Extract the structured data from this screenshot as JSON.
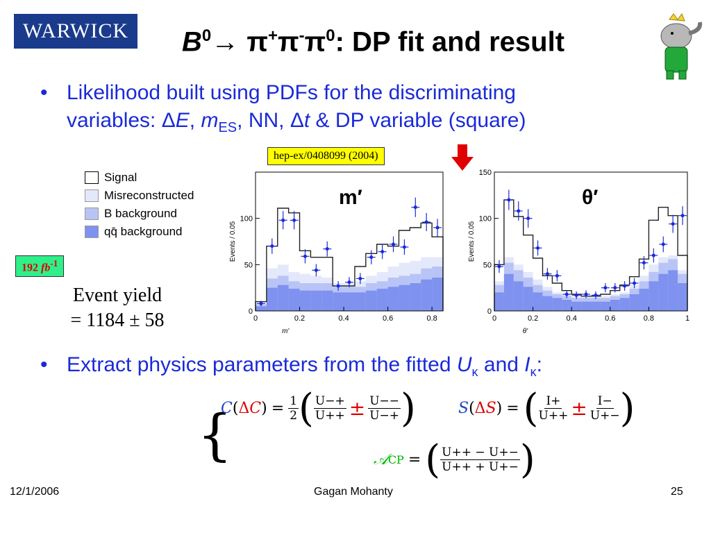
{
  "header": {
    "logo_text": "WARWICK",
    "title_B": "B",
    "title_B_sup": "0",
    "title_arrow": "→ π",
    "title_pi1_sup": "+",
    "title_pi2": "π",
    "title_pi2_sup": "-",
    "title_pi3": "π",
    "title_pi3_sup": "0",
    "title_rest": ": DP fit and result"
  },
  "bullets": {
    "b1_line1": "Likelihood built using PDFs for the discriminating",
    "b1_line2_a": "variables: Δ",
    "b1_line2_E": "E",
    "b1_line2_b": ", ",
    "b1_line2_m": "m",
    "b1_line2_sub": "ES",
    "b1_line2_c": ", NN, Δ",
    "b1_line2_t": "t",
    "b1_line2_d": " & DP variable (square)",
    "b2_a": "Extract physics parameters from the fitted ",
    "b2_U": "U",
    "b2_kappa1": "κ",
    "b2_and": " and ",
    "b2_I": "I",
    "b2_kappa2": "κ",
    "b2_colon": ":"
  },
  "reference": "hep-ex/0408099 (2004)",
  "luminosity": {
    "value": "192 ",
    "unit": "fb",
    "sup": "-1"
  },
  "event_yield": {
    "line1": "Event yield",
    "line2": "= 1184 ± 58"
  },
  "legend": {
    "items": [
      {
        "label": "Signal",
        "color": "#ffffff"
      },
      {
        "label": "Misreconstructed",
        "color": "#e4e8fb"
      },
      {
        "label": "B background",
        "color": "#b9c4f6"
      },
      {
        "label": "qq̄ background",
        "color": "#7f92ef"
      }
    ]
  },
  "plot_labels": {
    "left_var": "m′",
    "right_var": "θ′",
    "left_ylabel": "Events / 0.05",
    "right_ylabel": "Events / 0.05",
    "left_xlabel": "m'",
    "right_xlabel": "θ'"
  },
  "chart_data": [
    {
      "type": "bar",
      "title": "m′",
      "xlabel": "m'",
      "ylabel": "Events / 0.05",
      "xlim": [
        0,
        0.85
      ],
      "ylim": [
        0,
        150
      ],
      "x_ticks": [
        "0",
        "0.2",
        "0.4",
        "0.6",
        "0.8"
      ],
      "y_ticks": [
        "0",
        "50",
        "100"
      ],
      "bin_edges": [
        0,
        0.05,
        0.1,
        0.15,
        0.2,
        0.25,
        0.3,
        0.35,
        0.4,
        0.45,
        0.5,
        0.55,
        0.6,
        0.65,
        0.7,
        0.75,
        0.8,
        0.85
      ],
      "series": [
        {
          "name": "qq̄ background",
          "values": [
            5,
            25,
            28,
            24,
            22,
            22,
            22,
            20,
            20,
            20,
            22,
            24,
            26,
            28,
            30,
            34,
            36
          ]
        },
        {
          "name": "B background",
          "values": [
            7,
            35,
            38,
            32,
            30,
            30,
            30,
            26,
            26,
            26,
            30,
            32,
            36,
            38,
            40,
            46,
            48
          ]
        },
        {
          "name": "Misreconstructed",
          "values": [
            8,
            46,
            50,
            42,
            40,
            38,
            36,
            30,
            30,
            32,
            38,
            42,
            48,
            52,
            54,
            58,
            58
          ]
        },
        {
          "name": "Signal",
          "values": [
            10,
            70,
            111,
            106,
            65,
            58,
            58,
            27,
            27,
            48,
            62,
            72,
            70,
            87,
            90,
            95,
            80
          ]
        }
      ],
      "data_points": [
        {
          "x": 0.025,
          "y": 8
        },
        {
          "x": 0.075,
          "y": 70
        },
        {
          "x": 0.125,
          "y": 98
        },
        {
          "x": 0.175,
          "y": 98
        },
        {
          "x": 0.225,
          "y": 59
        },
        {
          "x": 0.275,
          "y": 44
        },
        {
          "x": 0.325,
          "y": 67
        },
        {
          "x": 0.375,
          "y": 27
        },
        {
          "x": 0.425,
          "y": 31
        },
        {
          "x": 0.475,
          "y": 35
        },
        {
          "x": 0.525,
          "y": 58
        },
        {
          "x": 0.575,
          "y": 64
        },
        {
          "x": 0.625,
          "y": 72
        },
        {
          "x": 0.675,
          "y": 69
        },
        {
          "x": 0.725,
          "y": 112
        },
        {
          "x": 0.775,
          "y": 96
        },
        {
          "x": 0.825,
          "y": 90
        }
      ]
    },
    {
      "type": "bar",
      "title": "θ′",
      "xlabel": "θ'",
      "ylabel": "Events / 0.05",
      "xlim": [
        0,
        1
      ],
      "ylim": [
        0,
        150
      ],
      "x_ticks": [
        "0",
        "0.2",
        "0.4",
        "0.6",
        "0.8",
        "1"
      ],
      "y_ticks": [
        "0",
        "50",
        "100",
        "150"
      ],
      "bin_edges": [
        0,
        0.05,
        0.1,
        0.15,
        0.2,
        0.25,
        0.3,
        0.35,
        0.4,
        0.45,
        0.5,
        0.55,
        0.6,
        0.65,
        0.7,
        0.75,
        0.8,
        0.85,
        0.9,
        0.95,
        1.0
      ],
      "series": [
        {
          "name": "qq̄ background",
          "values": [
            20,
            40,
            32,
            26,
            20,
            16,
            14,
            12,
            10,
            10,
            10,
            10,
            12,
            14,
            18,
            24,
            32,
            40,
            44,
            30
          ]
        },
        {
          "name": "B background",
          "values": [
            28,
            52,
            44,
            36,
            28,
            22,
            18,
            16,
            14,
            14,
            14,
            14,
            16,
            18,
            24,
            32,
            42,
            52,
            56,
            40
          ]
        },
        {
          "name": "Misreconstructed",
          "values": [
            32,
            58,
            50,
            42,
            34,
            26,
            20,
            18,
            16,
            16,
            16,
            16,
            18,
            20,
            28,
            38,
            50,
            58,
            60,
            44
          ]
        },
        {
          "name": "Signal",
          "values": [
            50,
            120,
            102,
            82,
            57,
            38,
            30,
            22,
            18,
            16,
            16,
            18,
            22,
            28,
            37,
            56,
            98,
            112,
            103,
            60
          ]
        }
      ],
      "data_points": [
        {
          "x": 0.025,
          "y": 48
        },
        {
          "x": 0.075,
          "y": 120
        },
        {
          "x": 0.125,
          "y": 108
        },
        {
          "x": 0.175,
          "y": 100
        },
        {
          "x": 0.225,
          "y": 68
        },
        {
          "x": 0.275,
          "y": 40
        },
        {
          "x": 0.325,
          "y": 38
        },
        {
          "x": 0.375,
          "y": 18
        },
        {
          "x": 0.425,
          "y": 17
        },
        {
          "x": 0.475,
          "y": 18
        },
        {
          "x": 0.525,
          "y": 17
        },
        {
          "x": 0.575,
          "y": 25
        },
        {
          "x": 0.625,
          "y": 25
        },
        {
          "x": 0.675,
          "y": 27
        },
        {
          "x": 0.725,
          "y": 30
        },
        {
          "x": 0.775,
          "y": 52
        },
        {
          "x": 0.825,
          "y": 60
        },
        {
          "x": 0.875,
          "y": 72
        },
        {
          "x": 0.925,
          "y": 94
        },
        {
          "x": 0.975,
          "y": 103
        }
      ]
    }
  ],
  "equations": {
    "C": "C",
    "dC_open": "(",
    "delta_C": "Δ",
    "C2": "C",
    "dC_close": ")",
    "eq": "=",
    "half_num": "1",
    "half_den": "2",
    "frac1_num": "U−+",
    "frac1_den": "U++",
    "pm": "±",
    "frac2_num": "U−−",
    "frac2_den": "U−+",
    "S": "S",
    "delta_S": "Δ",
    "S2": "S",
    "fracS1_num": "I+",
    "fracS1_den": "U++",
    "fracS2_num": "I−",
    "fracS2_den": "U+−",
    "A": "𝒜",
    "A_sub": "CP",
    "fracA_num": "U++ − U+−",
    "fracA_den": "U++ + U+−"
  },
  "footer": {
    "date": "12/1/2006",
    "author": "Gagan Mohanty",
    "page": "25"
  },
  "colors": {
    "title": "#000000",
    "bullet": "#1a2ad8",
    "logo_bg": "#1a3a8c",
    "qq_bkg": "#7f92ef",
    "b_bkg": "#b9c4f6",
    "misrec": "#e4e8fb",
    "data_points": "#1a2ad8",
    "arrow": "#e00000"
  }
}
